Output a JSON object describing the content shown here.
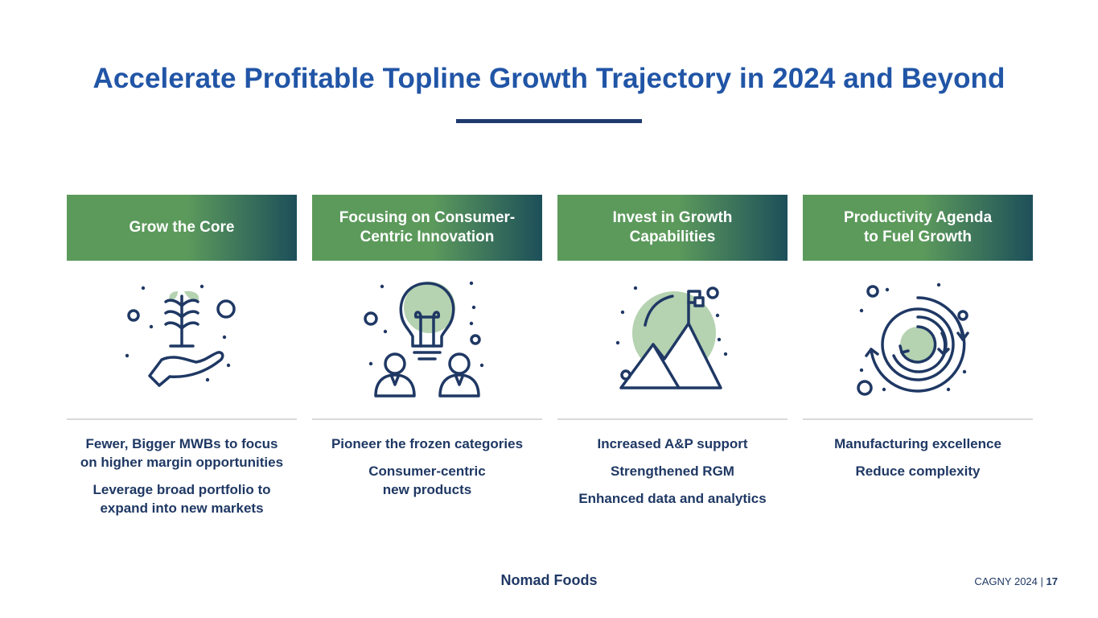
{
  "slide": {
    "title": "Accelerate Profitable Topline Growth Trajectory in 2024 and Beyond"
  },
  "pillars": [
    {
      "header": "Grow the Core",
      "icon": "hand-plant-icon",
      "points": [
        "Fewer, Bigger MWBs to focus\non higher margin opportunities",
        "Leverage broad portfolio to\nexpand into new markets"
      ]
    },
    {
      "header": "Focusing on Consumer-\nCentric Innovation",
      "icon": "lightbulb-people-icon",
      "points": [
        "Pioneer the frozen categories",
        "Consumer-centric\nnew products"
      ]
    },
    {
      "header": "Invest in Growth\nCapabilities",
      "icon": "mountain-flag-icon",
      "points": [
        "Increased A&P support",
        "Strengthened RGM",
        "Enhanced data and analytics"
      ]
    },
    {
      "header": "Productivity Agenda\nto Fuel Growth",
      "icon": "circular-arrows-icon",
      "points": [
        "Manufacturing excellence",
        "Reduce complexity"
      ]
    }
  ],
  "footer": {
    "logo": "Nomad Foods",
    "event": "CAGNY 2024",
    "separator": "|",
    "page": "17"
  },
  "colors": {
    "title": "#2155a6",
    "navy": "#1f3864",
    "green": "#5c9a5c",
    "teal": "#1d4f5a",
    "light_green": "#b5d2b1"
  }
}
